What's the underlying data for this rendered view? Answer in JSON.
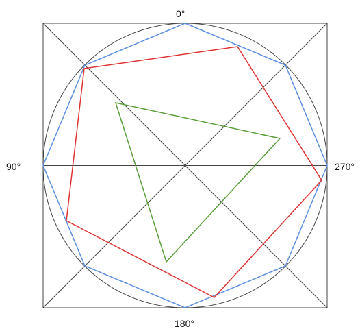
{
  "labels": {
    "top": "0°",
    "left": "90°",
    "right": "270°",
    "bottom": "180°"
  },
  "colors": {
    "frame": "#444444",
    "circle": "#444444",
    "octagon": "#5b8fde",
    "pentagon": "#e03131",
    "triangle": "#5a9e3a"
  }
}
